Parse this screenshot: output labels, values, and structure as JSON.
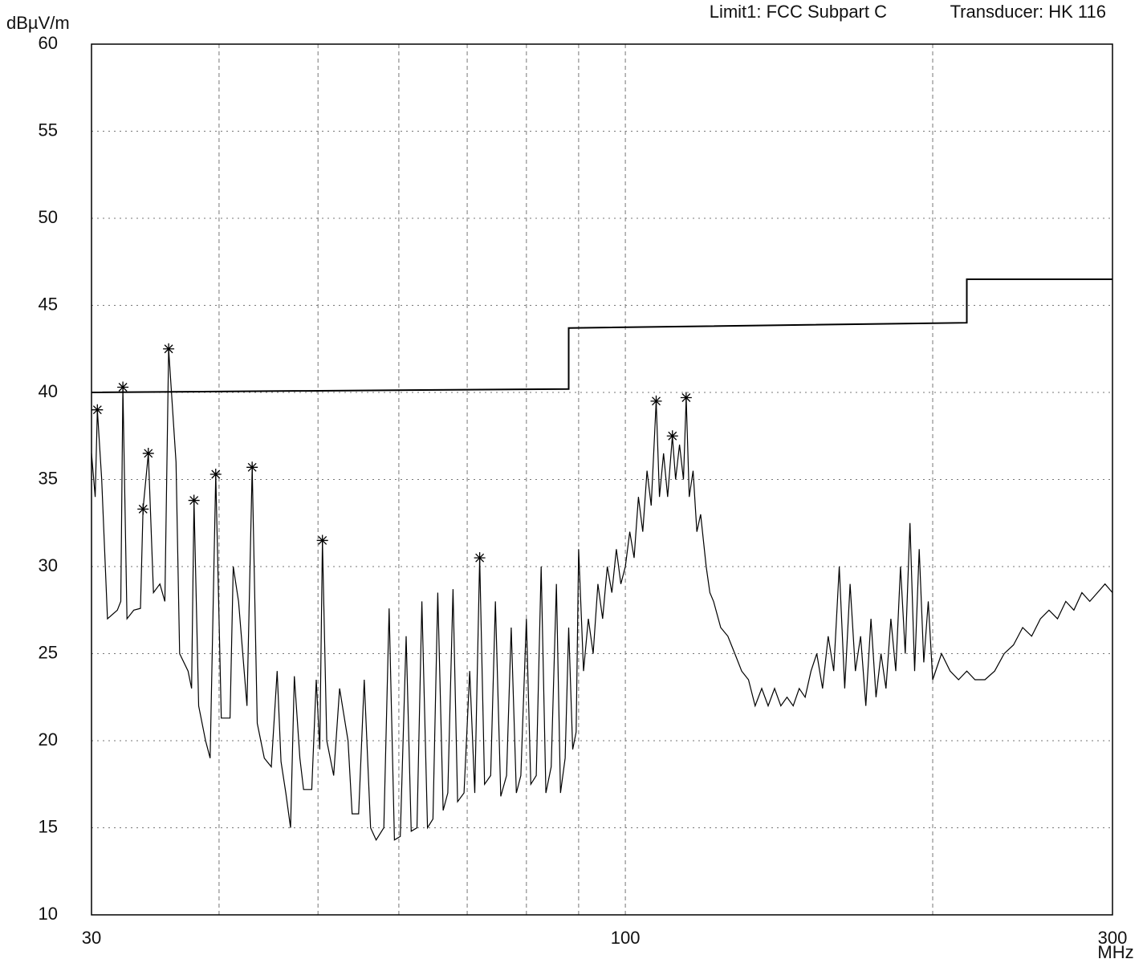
{
  "chart_data": {
    "type": "line",
    "xscale": "log",
    "ylabel": "dBµV/m",
    "xunit": "MHz",
    "annotations": [
      "Limit1: FCC Subpart C",
      "Transducer: HK 116"
    ],
    "xlim": [
      30,
      300
    ],
    "ylim": [
      10,
      60
    ],
    "xticks": [
      30,
      100,
      300
    ],
    "xgrid": [
      40,
      50,
      60,
      70,
      80,
      90,
      200
    ],
    "yticks": [
      10,
      15,
      20,
      25,
      30,
      35,
      40,
      45,
      50,
      55,
      60
    ],
    "grid": true,
    "series": [
      {
        "color": "#000000",
        "x": [
          30,
          30.25,
          30.4,
          30.7,
          31.1,
          31.8,
          32.05,
          32.2,
          32.5,
          33,
          33.5,
          33.7,
          34.1,
          34.5,
          35,
          35.4,
          35.7,
          36.3,
          36.6,
          37.3,
          37.6,
          37.8,
          38.2,
          38.8,
          39.2,
          39.7,
          40.2,
          41,
          41.3,
          41.8,
          42.6,
          43.1,
          43.6,
          44.3,
          45,
          45.6,
          46,
          46.5,
          47,
          47.4,
          48,
          48.4,
          49.3,
          49.8,
          50.2,
          50.5,
          51,
          51.8,
          52.5,
          53.5,
          54,
          54.8,
          55.5,
          56.3,
          57,
          58,
          58.7,
          59.4,
          60.2,
          61,
          61.7,
          62.5,
          63.2,
          64,
          64.8,
          65.5,
          66.3,
          67,
          67.8,
          68.5,
          69.5,
          70.4,
          71.2,
          72,
          72.8,
          73.8,
          74.6,
          75.5,
          76.5,
          77.3,
          78.2,
          79,
          80,
          80.8,
          81.8,
          82.7,
          83.6,
          84.6,
          85.6,
          86.4,
          87.3,
          88,
          88.8,
          89.5,
          90,
          91,
          92,
          93,
          94,
          95,
          96,
          97,
          98,
          99,
          100,
          101,
          102,
          103,
          104,
          105,
          106,
          107.2,
          108,
          109,
          110,
          111.2,
          112,
          113,
          114,
          114.7,
          115.5,
          116.5,
          117.5,
          118.5,
          120,
          121,
          122,
          124,
          126,
          128,
          130,
          132,
          134,
          136,
          138,
          140,
          142,
          144,
          146,
          148,
          150,
          152,
          154,
          156,
          158,
          160,
          162,
          164,
          166,
          168,
          170,
          172,
          174,
          176,
          178,
          180,
          182,
          184,
          186,
          188,
          190,
          192,
          194,
          196,
          198,
          200,
          204,
          208,
          212,
          216,
          220,
          225,
          230,
          235,
          240,
          245,
          250,
          255,
          260,
          265,
          270,
          275,
          280,
          285,
          290,
          295,
          300
        ],
        "values": [
          36.5,
          34,
          39,
          35,
          27,
          27.5,
          28,
          40.3,
          27,
          27.5,
          27.6,
          33.3,
          36.5,
          28.5,
          29,
          28,
          42.5,
          36,
          25,
          24,
          23,
          33.8,
          22,
          20,
          19,
          35.3,
          21.3,
          21.3,
          30,
          28,
          22,
          35.7,
          21,
          19,
          18.5,
          24,
          18.8,
          17,
          15,
          23.7,
          19,
          17.2,
          17.2,
          23.5,
          19.5,
          31.5,
          20,
          18,
          23,
          20,
          15.8,
          15.8,
          23.5,
          15,
          14.3,
          15,
          27.6,
          14.3,
          14.5,
          26,
          14.8,
          15,
          28,
          15,
          15.5,
          28.5,
          16,
          17,
          28.7,
          16.5,
          17,
          24,
          17,
          30.5,
          17.5,
          18,
          28,
          16.8,
          18,
          26.5,
          17,
          18,
          27,
          17.5,
          18,
          30,
          17,
          18.5,
          29,
          17,
          19,
          26.5,
          19.5,
          20.5,
          31,
          24,
          27,
          25,
          29,
          27,
          30,
          28.5,
          31,
          29,
          30,
          32,
          30.5,
          34,
          32,
          35.5,
          33.5,
          39.5,
          34,
          36.5,
          34,
          37.5,
          35,
          37,
          35,
          39.7,
          34,
          35.5,
          32,
          33,
          30,
          28.5,
          28,
          26.5,
          26,
          25,
          24,
          23.5,
          22,
          23,
          22,
          23,
          22,
          22.5,
          22,
          23,
          22.5,
          24,
          25,
          23,
          26,
          24,
          30,
          23,
          29,
          24,
          26,
          22,
          27,
          22.5,
          25,
          23,
          27,
          24,
          30,
          25,
          32.5,
          24,
          31,
          24.5,
          28,
          23.5,
          25,
          24,
          23.5,
          24,
          23.5,
          23.5,
          24,
          25,
          25.5,
          26.5,
          26,
          27,
          27.5,
          27,
          28,
          27.5,
          28.5,
          28,
          28.5,
          29,
          28.5
        ]
      },
      {
        "color": "#000000",
        "x": [
          30,
          88,
          88,
          216,
          216,
          300
        ],
        "values": [
          40,
          40.2,
          43.7,
          44,
          46.5,
          46.5
        ]
      }
    ],
    "peaks": {
      "x": [
        30.4,
        32.2,
        33.7,
        34.1,
        35.7,
        37.8,
        39.7,
        43.1,
        50.5,
        72,
        107.2,
        111.2,
        114.7
      ],
      "values": [
        39,
        40.3,
        33.3,
        36.5,
        42.5,
        33.8,
        35.3,
        35.7,
        31.5,
        30.5,
        39.5,
        37.5,
        39.7
      ]
    }
  }
}
